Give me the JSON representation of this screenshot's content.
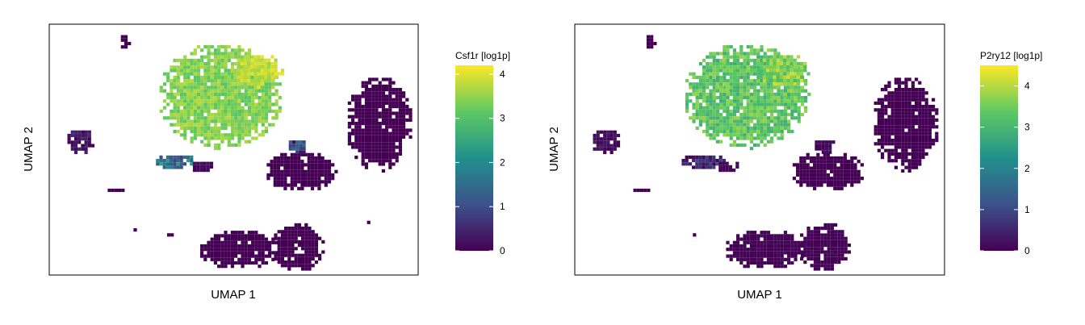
{
  "chart_data": [
    {
      "type": "scatter",
      "subtype": "hexbin-embedding",
      "xlabel": "UMAP 1",
      "ylabel": "UMAP 2",
      "gene": "Csf1r",
      "colorbar": {
        "title": "Csf1r [log1p]",
        "range": [
          0,
          4.2
        ],
        "ticks": [
          0,
          1,
          2,
          3,
          4
        ],
        "colormap": "viridis"
      },
      "clusters": [
        {
          "id": "small-top-left",
          "x": 0.2,
          "y": 0.94,
          "rx": 0.015,
          "ry": 0.03,
          "value": 0.0,
          "spread": 0.0
        },
        {
          "id": "main-large",
          "x": 0.46,
          "y": 0.72,
          "rx": 0.17,
          "ry": 0.21,
          "value": 3.4,
          "spread": 0.35
        },
        {
          "id": "main-upper-lobe",
          "x": 0.56,
          "y": 0.82,
          "rx": 0.07,
          "ry": 0.07,
          "value": 3.8,
          "spread": 0.3
        },
        {
          "id": "left-small",
          "x": 0.08,
          "y": 0.54,
          "rx": 0.04,
          "ry": 0.05,
          "value": 0.2,
          "spread": 0.4
        },
        {
          "id": "center-streak",
          "x": 0.34,
          "y": 0.46,
          "rx": 0.06,
          "ry": 0.03,
          "value": 1.6,
          "spread": 0.8
        },
        {
          "id": "center-tail",
          "x": 0.41,
          "y": 0.44,
          "rx": 0.03,
          "ry": 0.025,
          "value": 0.1,
          "spread": 0.1
        },
        {
          "id": "left-thin",
          "x": 0.18,
          "y": 0.35,
          "rx": 0.04,
          "ry": 0.008,
          "value": 0.0,
          "spread": 0.0
        },
        {
          "id": "center-right",
          "x": 0.68,
          "y": 0.42,
          "rx": 0.1,
          "ry": 0.08,
          "value": 0.0,
          "spread": 0.0
        },
        {
          "id": "center-right-tip",
          "x": 0.67,
          "y": 0.52,
          "rx": 0.03,
          "ry": 0.03,
          "value": 0.8,
          "spread": 0.7
        },
        {
          "id": "right-large",
          "x": 0.89,
          "y": 0.61,
          "rx": 0.09,
          "ry": 0.19,
          "value": 0.0,
          "spread": 0.0
        },
        {
          "id": "right-dot",
          "x": 0.86,
          "y": 0.22,
          "rx": 0.008,
          "ry": 0.01,
          "value": 0.0,
          "spread": 0.0
        },
        {
          "id": "bottom-dot-a",
          "x": 0.22,
          "y": 0.19,
          "rx": 0.01,
          "ry": 0.01,
          "value": 0.0,
          "spread": 0.0
        },
        {
          "id": "bottom-dot-b",
          "x": 0.32,
          "y": 0.17,
          "rx": 0.01,
          "ry": 0.01,
          "value": 0.0,
          "spread": 0.0
        },
        {
          "id": "bottom-left",
          "x": 0.51,
          "y": 0.11,
          "rx": 0.11,
          "ry": 0.08,
          "value": 0.0,
          "spread": 0.0
        },
        {
          "id": "bottom-right",
          "x": 0.67,
          "y": 0.12,
          "rx": 0.07,
          "ry": 0.1,
          "value": 0.0,
          "spread": 0.0
        }
      ]
    },
    {
      "type": "scatter",
      "subtype": "hexbin-embedding",
      "xlabel": "UMAP 1",
      "ylabel": "UMAP 2",
      "gene": "P2ry12",
      "colorbar": {
        "title": "P2ry12 [log1p]",
        "range": [
          0,
          4.5
        ],
        "ticks": [
          0,
          1,
          2,
          3,
          4
        ],
        "colormap": "viridis"
      },
      "clusters": [
        {
          "id": "small-top-left",
          "x": 0.2,
          "y": 0.94,
          "rx": 0.015,
          "ry": 0.03,
          "value": 0.0,
          "spread": 0.0
        },
        {
          "id": "main-large",
          "x": 0.46,
          "y": 0.72,
          "rx": 0.17,
          "ry": 0.21,
          "value": 3.3,
          "spread": 0.5
        },
        {
          "id": "main-upper-lobe",
          "x": 0.56,
          "y": 0.82,
          "rx": 0.07,
          "ry": 0.07,
          "value": 3.6,
          "spread": 0.6
        },
        {
          "id": "left-small",
          "x": 0.08,
          "y": 0.54,
          "rx": 0.04,
          "ry": 0.05,
          "value": 0.15,
          "spread": 0.3
        },
        {
          "id": "center-streak",
          "x": 0.34,
          "y": 0.46,
          "rx": 0.06,
          "ry": 0.03,
          "value": 0.5,
          "spread": 0.6
        },
        {
          "id": "center-tail",
          "x": 0.41,
          "y": 0.44,
          "rx": 0.03,
          "ry": 0.025,
          "value": 0.1,
          "spread": 0.1
        },
        {
          "id": "left-thin",
          "x": 0.18,
          "y": 0.35,
          "rx": 0.04,
          "ry": 0.008,
          "value": 0.0,
          "spread": 0.0
        },
        {
          "id": "center-right",
          "x": 0.68,
          "y": 0.42,
          "rx": 0.1,
          "ry": 0.08,
          "value": 0.0,
          "spread": 0.0
        },
        {
          "id": "center-right-tip",
          "x": 0.67,
          "y": 0.52,
          "rx": 0.03,
          "ry": 0.03,
          "value": 0.1,
          "spread": 0.2
        },
        {
          "id": "right-large",
          "x": 0.89,
          "y": 0.61,
          "rx": 0.09,
          "ry": 0.19,
          "value": 0.0,
          "spread": 0.0
        },
        {
          "id": "right-dot",
          "x": 0.86,
          "y": 0.22,
          "rx": 0.008,
          "ry": 0.01,
          "value": 0.0,
          "spread": 0.0
        },
        {
          "id": "bottom-dot-a",
          "x": 0.22,
          "y": 0.19,
          "rx": 0.01,
          "ry": 0.01,
          "value": 0.0,
          "spread": 0.0
        },
        {
          "id": "bottom-dot-b",
          "x": 0.32,
          "y": 0.17,
          "rx": 0.01,
          "ry": 0.01,
          "value": 0.0,
          "spread": 0.0
        },
        {
          "id": "bottom-left",
          "x": 0.51,
          "y": 0.11,
          "rx": 0.11,
          "ry": 0.08,
          "value": 0.0,
          "spread": 0.15
        },
        {
          "id": "bottom-right",
          "x": 0.67,
          "y": 0.12,
          "rx": 0.07,
          "ry": 0.1,
          "value": 0.0,
          "spread": 0.15
        }
      ]
    }
  ]
}
